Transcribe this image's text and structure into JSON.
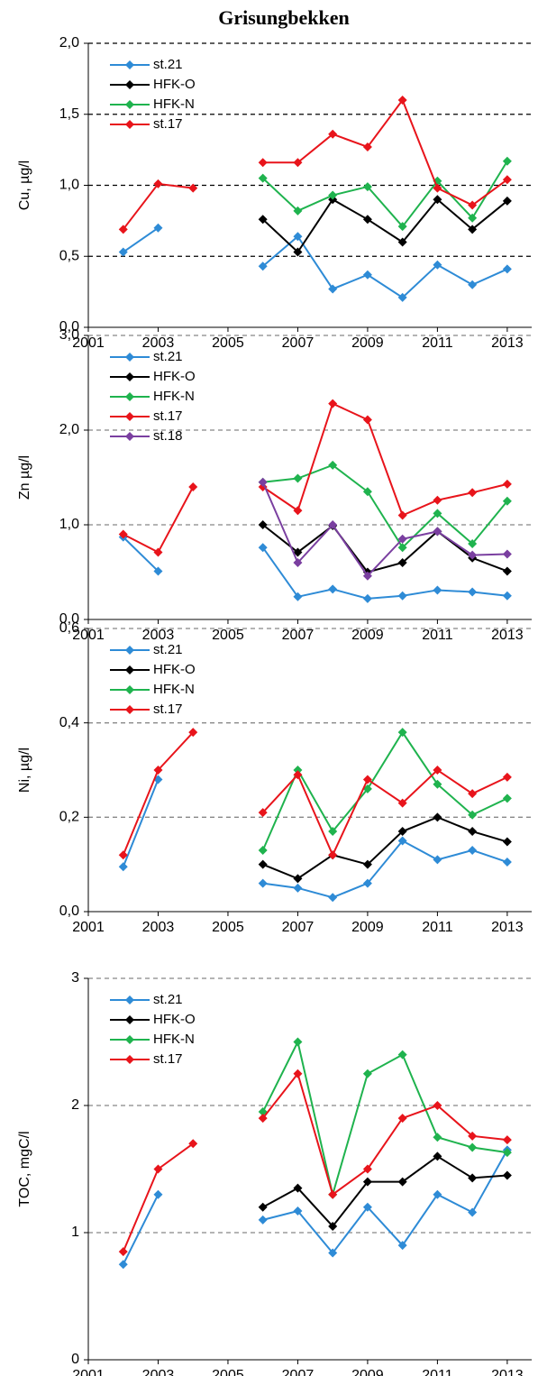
{
  "chart_data": [
    {
      "type": "line",
      "title": "Grisungbekken",
      "y_label": "Cu, µg/l",
      "x": [
        2002,
        2003,
        2004,
        2005,
        2006,
        2007,
        2008,
        2009,
        2010,
        2011,
        2012,
        2013
      ],
      "xlim": [
        2001,
        2013.7
      ],
      "xticks": [
        2001,
        2003,
        2005,
        2007,
        2009,
        2011,
        2013
      ],
      "ylim": [
        0,
        2
      ],
      "yticks": [
        {
          "value": 0,
          "label": "0,0"
        },
        {
          "value": 0.5,
          "label": "0,5"
        },
        {
          "value": 1,
          "label": "1,0"
        },
        {
          "value": 1.5,
          "label": "1,5"
        },
        {
          "value": 2,
          "label": "2,0"
        }
      ],
      "grid": true,
      "grid_color": "#000000",
      "legend": "upper left",
      "series": [
        {
          "name": "st.21",
          "color": "#2e8bd6",
          "values": [
            0.53,
            0.7,
            null,
            null,
            0.43,
            0.64,
            0.27,
            0.37,
            0.21,
            0.44,
            0.3,
            0.41
          ]
        },
        {
          "name": "HFK-O",
          "color": "#000000",
          "values": [
            null,
            null,
            null,
            null,
            0.76,
            0.53,
            0.9,
            0.76,
            0.6,
            0.9,
            0.69,
            0.89
          ]
        },
        {
          "name": "HFK-N",
          "color": "#1fb34e",
          "values": [
            null,
            null,
            null,
            null,
            1.05,
            0.82,
            0.93,
            0.99,
            0.71,
            1.03,
            0.77,
            1.17
          ]
        },
        {
          "name": "st.17",
          "color": "#e8141b",
          "values": [
            0.69,
            1.01,
            0.98,
            null,
            1.16,
            1.16,
            1.36,
            1.27,
            1.6,
            0.98,
            0.86,
            1.04
          ]
        }
      ]
    },
    {
      "type": "line",
      "y_label": "Zn µg/l",
      "x": [
        2002,
        2003,
        2004,
        2005,
        2006,
        2007,
        2008,
        2009,
        2010,
        2011,
        2012,
        2013
      ],
      "xlim": [
        2001,
        2013.7
      ],
      "xticks": [
        2001,
        2003,
        2005,
        2007,
        2009,
        2011,
        2013
      ],
      "ylim": [
        0,
        3
      ],
      "yticks": [
        {
          "value": 0,
          "label": "0,0"
        },
        {
          "value": 1,
          "label": "1,0"
        },
        {
          "value": 2,
          "label": "2,0"
        },
        {
          "value": 3,
          "label": "3,0"
        }
      ],
      "grid": true,
      "grid_color": "#888888",
      "legend": "upper left",
      "series": [
        {
          "name": "st.21",
          "color": "#2e8bd6",
          "values": [
            0.87,
            0.51,
            null,
            null,
            0.76,
            0.24,
            0.32,
            0.22,
            0.25,
            0.31,
            0.29,
            0.25
          ]
        },
        {
          "name": "HFK-O",
          "color": "#000000",
          "values": [
            null,
            null,
            null,
            null,
            1.0,
            0.71,
            0.99,
            0.5,
            0.6,
            0.93,
            0.65,
            0.51
          ]
        },
        {
          "name": "HFK-N",
          "color": "#1fb34e",
          "values": [
            null,
            null,
            null,
            null,
            1.45,
            1.49,
            1.63,
            1.35,
            0.76,
            1.12,
            0.8,
            1.25
          ]
        },
        {
          "name": "st.17",
          "color": "#e8141b",
          "values": [
            0.9,
            0.71,
            1.4,
            null,
            1.4,
            1.15,
            2.28,
            2.11,
            1.1,
            1.26,
            1.34,
            1.43
          ]
        },
        {
          "name": "st.18",
          "color": "#7a3fa0",
          "values": [
            null,
            null,
            null,
            null,
            1.45,
            0.6,
            1.0,
            0.46,
            0.85,
            0.93,
            0.68,
            0.69
          ]
        }
      ]
    },
    {
      "type": "line",
      "y_label": "Ni, µg/l",
      "x": [
        2002,
        2003,
        2004,
        2005,
        2006,
        2007,
        2008,
        2009,
        2010,
        2011,
        2012,
        2013
      ],
      "xlim": [
        2001,
        2013.7
      ],
      "xticks": [
        2001,
        2003,
        2005,
        2007,
        2009,
        2011,
        2013
      ],
      "ylim": [
        0,
        0.6
      ],
      "yticks": [
        {
          "value": 0,
          "label": "0,0"
        },
        {
          "value": 0.2,
          "label": "0,2"
        },
        {
          "value": 0.4,
          "label": "0,4"
        },
        {
          "value": 0.6,
          "label": "0,6"
        }
      ],
      "grid": true,
      "grid_color": "#888888",
      "legend": "upper left",
      "series": [
        {
          "name": "st.21",
          "color": "#2e8bd6",
          "values": [
            0.095,
            0.28,
            null,
            null,
            0.06,
            0.05,
            0.03,
            0.06,
            0.15,
            0.11,
            0.13,
            0.105
          ]
        },
        {
          "name": "HFK-O",
          "color": "#000000",
          "values": [
            null,
            null,
            null,
            null,
            0.1,
            0.07,
            0.12,
            0.1,
            0.17,
            0.2,
            0.17,
            0.148
          ]
        },
        {
          "name": "HFK-N",
          "color": "#1fb34e",
          "values": [
            null,
            null,
            null,
            null,
            0.13,
            0.3,
            0.17,
            0.26,
            0.38,
            0.27,
            0.205,
            0.24
          ]
        },
        {
          "name": "st.17",
          "color": "#e8141b",
          "values": [
            0.12,
            0.3,
            0.38,
            null,
            0.21,
            0.29,
            0.12,
            0.28,
            0.23,
            0.3,
            0.25,
            0.285
          ]
        }
      ]
    },
    {
      "type": "line",
      "y_label": "TOC, mgC/l",
      "x": [
        2002,
        2003,
        2004,
        2005,
        2006,
        2007,
        2008,
        2009,
        2010,
        2011,
        2012,
        2013
      ],
      "xlim": [
        2001,
        2013.7
      ],
      "xticks": [
        2001,
        2003,
        2005,
        2007,
        2009,
        2011,
        2013
      ],
      "ylim": [
        0,
        3
      ],
      "yticks": [
        0,
        1,
        2,
        3
      ],
      "grid": true,
      "grid_color": "#888888",
      "legend": "upper left",
      "series": [
        {
          "name": "st.21",
          "color": "#2e8bd6",
          "values": [
            0.75,
            1.3,
            null,
            null,
            1.1,
            1.17,
            0.84,
            1.2,
            0.9,
            1.3,
            1.16,
            1.65
          ]
        },
        {
          "name": "HFK-O",
          "color": "#000000",
          "values": [
            null,
            null,
            null,
            null,
            1.2,
            1.35,
            1.05,
            1.4,
            1.4,
            1.6,
            1.43,
            1.45
          ]
        },
        {
          "name": "HFK-N",
          "color": "#1fb34e",
          "values": [
            null,
            null,
            null,
            null,
            1.95,
            2.5,
            1.3,
            2.25,
            2.4,
            1.75,
            1.67,
            1.63
          ]
        },
        {
          "name": "st.17",
          "color": "#e8141b",
          "values": [
            0.85,
            1.5,
            1.7,
            null,
            1.9,
            2.25,
            1.3,
            1.5,
            1.9,
            2.0,
            1.76,
            1.73
          ]
        }
      ]
    }
  ]
}
